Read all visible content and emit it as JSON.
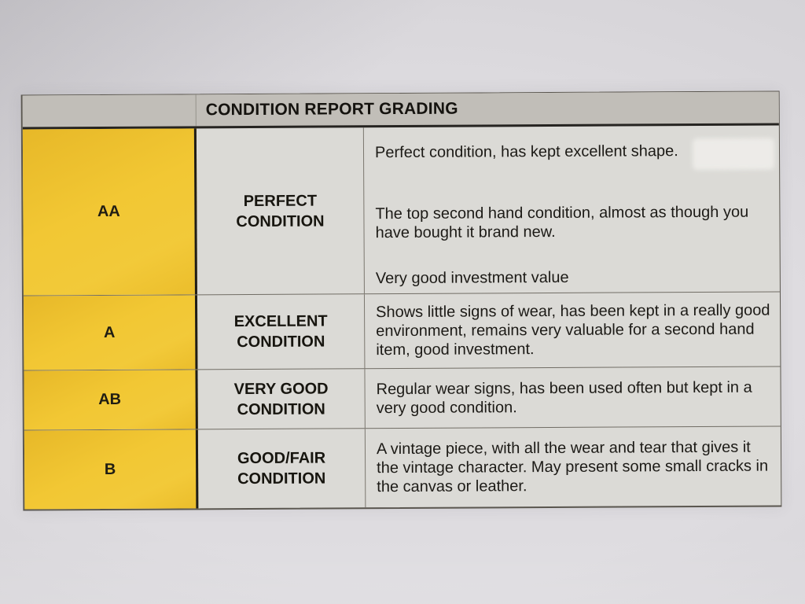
{
  "table": {
    "title": "CONDITION REPORT GRADING",
    "rows": [
      {
        "grade": "AA",
        "label_lines": [
          "PERFECT",
          "CONDITION"
        ],
        "paragraphs": [
          "Perfect condition, has kept excellent shape.",
          "The top second hand condition, almost as though you have bought it brand new.",
          "Very good investment value"
        ]
      },
      {
        "grade": "A",
        "label_lines": [
          "EXCELLENT",
          "CONDITION"
        ],
        "paragraphs": [
          "Shows little signs of wear, has been kept in a really good environment, remains very valuable for a second hand item, good investment."
        ]
      },
      {
        "grade": "AB",
        "label_lines": [
          "VERY GOOD",
          "CONDITION"
        ],
        "paragraphs": [
          "Regular wear signs, has been used often but kept in a very good condition."
        ]
      },
      {
        "grade": "B",
        "label_lines": [
          "GOOD/FAIR",
          "CONDITION"
        ],
        "paragraphs": [
          "A vintage piece, with all the wear and tear that gives it the vintage character. May present some small cracks in the canvas or leather."
        ]
      }
    ],
    "colors": {
      "grade_column_bg": "#F0C42F",
      "header_bg": "#C1BEB8",
      "cell_bg": "#DBDAD6",
      "border_dark": "#22201E",
      "border_light": "#716D65",
      "text": "#1B1A17"
    }
  }
}
